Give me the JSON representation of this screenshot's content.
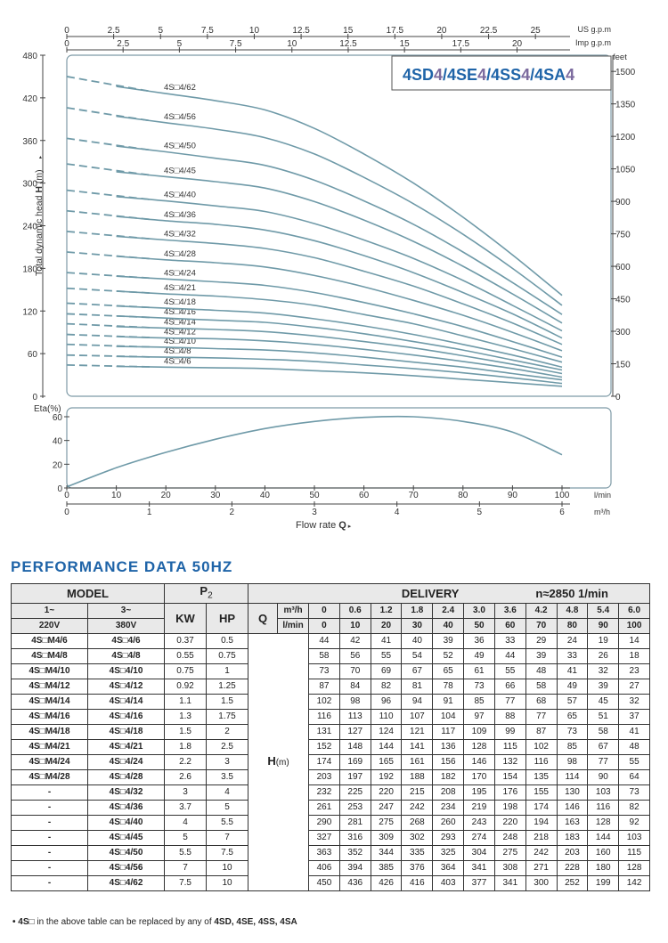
{
  "chart_data": [
    {
      "type": "line",
      "title": "4SD4/4SE4/4SS4/4SA4",
      "title_parts": [
        "4SD",
        "4",
        "/4SE",
        "4",
        "/4SS",
        "4",
        "/4SA",
        "4"
      ],
      "ylabel": "Total dynamic head  H (m)",
      "ylabel_prefix": "Total dynamic head ",
      "ylabel_h": "H",
      "ylabel_unit": " (m)",
      "ylim": [
        0,
        480
      ],
      "yticks": [
        0,
        60,
        120,
        180,
        240,
        300,
        360,
        420,
        480
      ],
      "y2_label": "feet",
      "y2_ticks": [
        0,
        150,
        300,
        450,
        600,
        750,
        900,
        1050,
        1200,
        1350,
        1500
      ],
      "us_label": "US g.p.m",
      "us_ticks": [
        0,
        2.5,
        5,
        7.5,
        10,
        12.5,
        15,
        17.5,
        20,
        22.5,
        25
      ],
      "imp_label": "Imp g.p.m",
      "imp_ticks": [
        0,
        2.5,
        5,
        7.5,
        10,
        12.5,
        15,
        17.5,
        20
      ],
      "x": [
        0,
        10,
        20,
        30,
        40,
        50,
        60,
        70,
        80,
        90,
        100
      ],
      "series": [
        {
          "name": "4S□4/6",
          "values": [
            44,
            42,
            41,
            40,
            39,
            36,
            33,
            29,
            24,
            19,
            14
          ]
        },
        {
          "name": "4S□4/8",
          "values": [
            58,
            56,
            55,
            54,
            52,
            49,
            44,
            39,
            33,
            26,
            18
          ]
        },
        {
          "name": "4S□4/10",
          "values": [
            73,
            70,
            69,
            67,
            65,
            61,
            55,
            48,
            41,
            32,
            23
          ]
        },
        {
          "name": "4S□4/12",
          "values": [
            87,
            84,
            82,
            81,
            78,
            73,
            66,
            58,
            49,
            39,
            27
          ]
        },
        {
          "name": "4S□4/14",
          "values": [
            102,
            98,
            96,
            94,
            91,
            85,
            77,
            68,
            57,
            45,
            32
          ]
        },
        {
          "name": "4S□4/16",
          "values": [
            116,
            113,
            110,
            107,
            104,
            97,
            88,
            77,
            65,
            51,
            37
          ]
        },
        {
          "name": "4S□4/18",
          "values": [
            131,
            127,
            124,
            121,
            117,
            109,
            99,
            87,
            73,
            58,
            41
          ]
        },
        {
          "name": "4S□4/21",
          "values": [
            152,
            148,
            144,
            141,
            136,
            128,
            115,
            102,
            85,
            67,
            48
          ]
        },
        {
          "name": "4S□4/24",
          "values": [
            174,
            169,
            165,
            161,
            156,
            146,
            132,
            116,
            98,
            77,
            55
          ]
        },
        {
          "name": "4S□4/28",
          "values": [
            203,
            197,
            192,
            188,
            182,
            170,
            154,
            135,
            114,
            90,
            64
          ]
        },
        {
          "name": "4S□4/32",
          "values": [
            232,
            225,
            220,
            215,
            208,
            195,
            176,
            155,
            130,
            103,
            73
          ]
        },
        {
          "name": "4S□4/36",
          "values": [
            261,
            253,
            247,
            242,
            234,
            219,
            198,
            174,
            146,
            116,
            82
          ]
        },
        {
          "name": "4S□4/40",
          "values": [
            290,
            281,
            275,
            268,
            260,
            243,
            220,
            194,
            163,
            128,
            92
          ]
        },
        {
          "name": "4S□4/45",
          "values": [
            327,
            316,
            309,
            302,
            293,
            274,
            248,
            218,
            183,
            144,
            103
          ]
        },
        {
          "name": "4S□4/50",
          "values": [
            363,
            352,
            344,
            335,
            325,
            304,
            275,
            242,
            203,
            160,
            115
          ]
        },
        {
          "name": "4S□4/56",
          "values": [
            406,
            394,
            385,
            376,
            364,
            341,
            308,
            271,
            228,
            180,
            128
          ]
        },
        {
          "name": "4S□4/62",
          "values": [
            450,
            436,
            426,
            416,
            403,
            377,
            341,
            300,
            252,
            199,
            142
          ]
        }
      ]
    },
    {
      "type": "line",
      "ylabel": "Eta(%)",
      "ylim": [
        0,
        70
      ],
      "yticks": [
        0,
        20,
        40,
        60
      ],
      "x": [
        0,
        10,
        20,
        30,
        40,
        50,
        60,
        70,
        80,
        90,
        100
      ],
      "x_label": "l/min",
      "x2_ticks": [
        0,
        1,
        2,
        3,
        4,
        5,
        6
      ],
      "x2_label": "m³/h",
      "xlabel": "Flow rate",
      "xlabel_q": "Q",
      "xlabel_arrow": "▸",
      "series": [
        {
          "name": "Eta",
          "values": [
            1,
            17,
            30,
            41,
            50,
            56,
            59.5,
            60,
            56,
            47,
            28
          ]
        }
      ]
    }
  ],
  "performance": {
    "title": "PERFORMANCE DATA 50HZ",
    "model_label": "MODEL",
    "p2_label": "P",
    "p2_sub": "2",
    "delivery_label": "DELIVERY",
    "speed_label": "n≈2850 1/min",
    "col_1ph": "1~",
    "col_1ph_v": "220V",
    "col_3ph": "3~",
    "col_3ph_v": "380V",
    "kw_label": "KW",
    "hp_label": "HP",
    "q_label": "Q",
    "q_unit_m3h": "m³/h",
    "q_unit_lmin": "l/min",
    "q_m3h": [
      "0",
      "0.6",
      "1.2",
      "1.8",
      "2.4",
      "3.0",
      "3.6",
      "4.2",
      "4.8",
      "5.4",
      "6.0"
    ],
    "q_lmin": [
      "0",
      "10",
      "20",
      "30",
      "40",
      "50",
      "60",
      "70",
      "80",
      "90",
      "100"
    ],
    "h_label": "H",
    "h_unit": "(m)",
    "rows": [
      {
        "m1": "4S□M4/6",
        "m3": "4S□4/6",
        "kw": "0.37",
        "hp": "0.5",
        "h": [
          "44",
          "42",
          "41",
          "40",
          "39",
          "36",
          "33",
          "29",
          "24",
          "19",
          "14"
        ]
      },
      {
        "m1": "4S□M4/8",
        "m3": "4S□4/8",
        "kw": "0.55",
        "hp": "0.75",
        "h": [
          "58",
          "56",
          "55",
          "54",
          "52",
          "49",
          "44",
          "39",
          "33",
          "26",
          "18"
        ]
      },
      {
        "m1": "4S□M4/10",
        "m3": "4S□4/10",
        "kw": "0.75",
        "hp": "1",
        "h": [
          "73",
          "70",
          "69",
          "67",
          "65",
          "61",
          "55",
          "48",
          "41",
          "32",
          "23"
        ]
      },
      {
        "m1": "4S□M4/12",
        "m3": "4S□4/12",
        "kw": "0.92",
        "hp": "1.25",
        "h": [
          "87",
          "84",
          "82",
          "81",
          "78",
          "73",
          "66",
          "58",
          "49",
          "39",
          "27"
        ]
      },
      {
        "m1": "4S□M4/14",
        "m3": "4S□4/14",
        "kw": "1.1",
        "hp": "1.5",
        "h": [
          "102",
          "98",
          "96",
          "94",
          "91",
          "85",
          "77",
          "68",
          "57",
          "45",
          "32"
        ]
      },
      {
        "m1": "4S□M4/16",
        "m3": "4S□4/16",
        "kw": "1.3",
        "hp": "1.75",
        "h": [
          "116",
          "113",
          "110",
          "107",
          "104",
          "97",
          "88",
          "77",
          "65",
          "51",
          "37"
        ]
      },
      {
        "m1": "4S□M4/18",
        "m3": "4S□4/18",
        "kw": "1.5",
        "hp": "2",
        "h": [
          "131",
          "127",
          "124",
          "121",
          "117",
          "109",
          "99",
          "87",
          "73",
          "58",
          "41"
        ]
      },
      {
        "m1": "4S□M4/21",
        "m3": "4S□4/21",
        "kw": "1.8",
        "hp": "2.5",
        "h": [
          "152",
          "148",
          "144",
          "141",
          "136",
          "128",
          "115",
          "102",
          "85",
          "67",
          "48"
        ]
      },
      {
        "m1": "4S□M4/24",
        "m3": "4S□4/24",
        "kw": "2.2",
        "hp": "3",
        "h": [
          "174",
          "169",
          "165",
          "161",
          "156",
          "146",
          "132",
          "116",
          "98",
          "77",
          "55"
        ]
      },
      {
        "m1": "4S□M4/28",
        "m3": "4S□4/28",
        "kw": "2.6",
        "hp": "3.5",
        "h": [
          "203",
          "197",
          "192",
          "188",
          "182",
          "170",
          "154",
          "135",
          "114",
          "90",
          "64"
        ]
      },
      {
        "m1": "-",
        "m3": "4S□4/32",
        "kw": "3",
        "hp": "4",
        "h": [
          "232",
          "225",
          "220",
          "215",
          "208",
          "195",
          "176",
          "155",
          "130",
          "103",
          "73"
        ]
      },
      {
        "m1": "-",
        "m3": "4S□4/36",
        "kw": "3.7",
        "hp": "5",
        "h": [
          "261",
          "253",
          "247",
          "242",
          "234",
          "219",
          "198",
          "174",
          "146",
          "116",
          "82"
        ]
      },
      {
        "m1": "-",
        "m3": "4S□4/40",
        "kw": "4",
        "hp": "5.5",
        "h": [
          "290",
          "281",
          "275",
          "268",
          "260",
          "243",
          "220",
          "194",
          "163",
          "128",
          "92"
        ]
      },
      {
        "m1": "-",
        "m3": "4S□4/45",
        "kw": "5",
        "hp": "7",
        "h": [
          "327",
          "316",
          "309",
          "302",
          "293",
          "274",
          "248",
          "218",
          "183",
          "144",
          "103"
        ]
      },
      {
        "m1": "-",
        "m3": "4S□4/50",
        "kw": "5.5",
        "hp": "7.5",
        "h": [
          "363",
          "352",
          "344",
          "335",
          "325",
          "304",
          "275",
          "242",
          "203",
          "160",
          "115"
        ]
      },
      {
        "m1": "-",
        "m3": "4S□4/56",
        "kw": "7",
        "hp": "10",
        "h": [
          "406",
          "394",
          "385",
          "376",
          "364",
          "341",
          "308",
          "271",
          "228",
          "180",
          "128"
        ]
      },
      {
        "m1": "-",
        "m3": "4S□4/62",
        "kw": "7.5",
        "hp": "10",
        "h": [
          "450",
          "436",
          "426",
          "416",
          "403",
          "377",
          "341",
          "300",
          "252",
          "199",
          "142"
        ]
      }
    ],
    "footnote_prefix": "• 4S□",
    "footnote_text": " in the above table can be replaced by any of ",
    "footnote_models": "4SD, 4SE, 4SS, 4SA"
  },
  "colors": {
    "curve": "#6f9aa8",
    "frame": "#7e9aa6",
    "title_blue": "#1f64a8",
    "title_violet": "#7b6a9e",
    "grid_text": "#333333"
  }
}
